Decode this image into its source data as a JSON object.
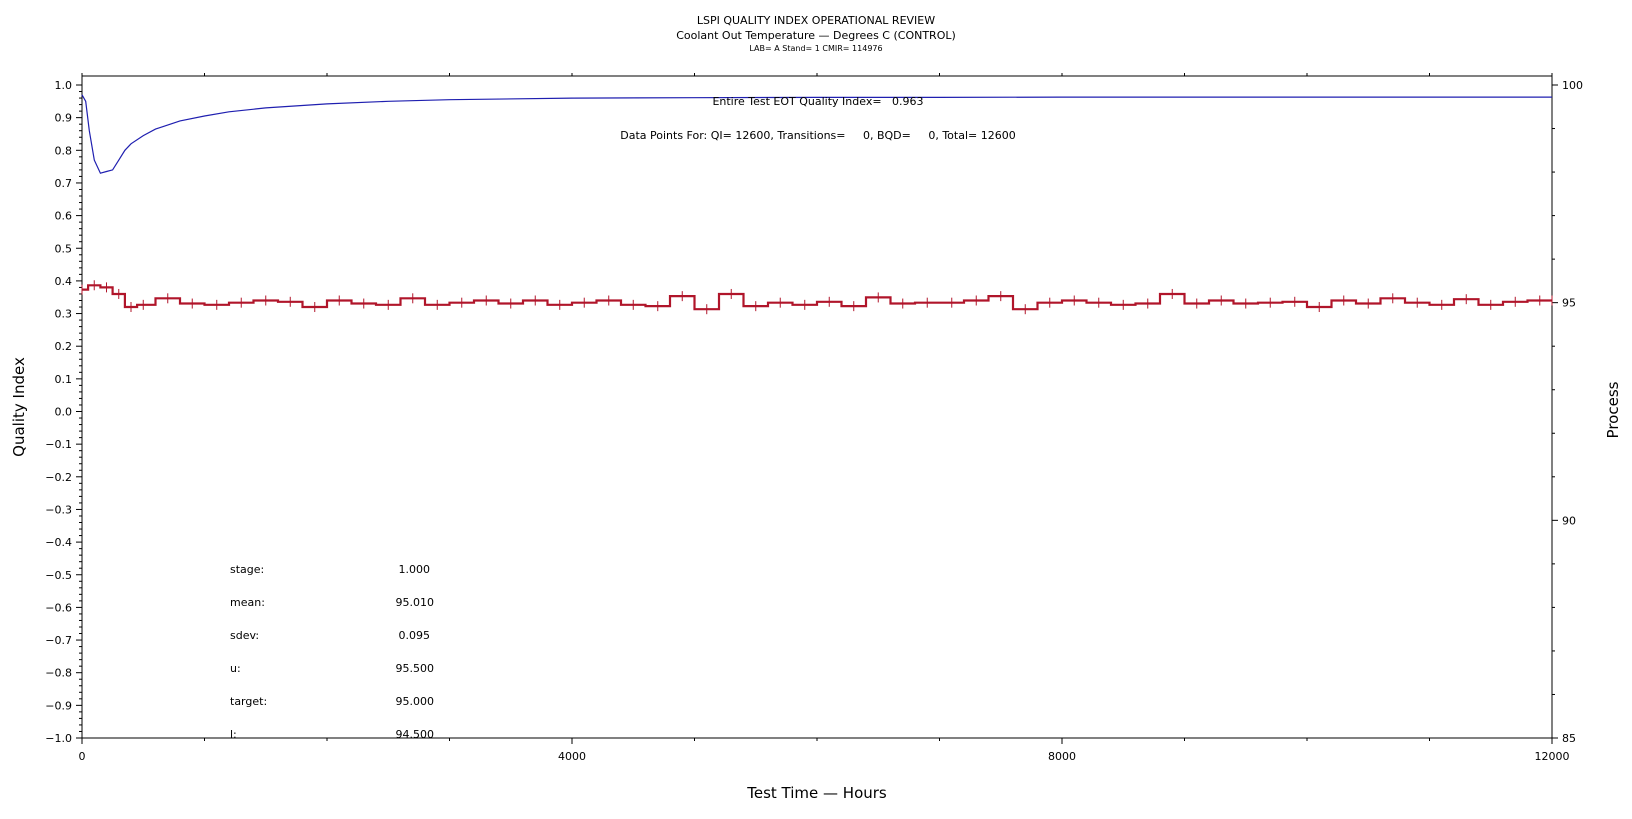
{
  "header": {
    "title": "LSPI QUALITY INDEX OPERATIONAL REVIEW",
    "subtitle": "Coolant Out Temperature — Degrees C (CONTROL)",
    "info": "LAB= A Stand= 1 CMIR= 114976"
  },
  "annotations": {
    "quality_index": "Entire Test EOT Quality Index=   0.963",
    "data_points": "Data Points For: QI= 12600, Transitions=     0, BQD=     0, Total= 12600"
  },
  "stats": [
    {
      "label": "stage:",
      "value": "1.000"
    },
    {
      "label": "mean:",
      "value": "95.010"
    },
    {
      "label": "sdev:",
      "value": "0.095"
    },
    {
      "label": "u:",
      "value": "95.500"
    },
    {
      "label": "target:",
      "value": "95.000"
    },
    {
      "label": "l:",
      "value": "94.500"
    }
  ],
  "chart_data": {
    "type": "line",
    "title": "LSPI QUALITY INDEX OPERATIONAL REVIEW",
    "subtitle": "Coolant Out Temperature — Degrees C (CONTROL)",
    "xlabel": "Test Time — Hours",
    "ylabel": "Quality Index",
    "y2label": "Process",
    "xlim": [
      0,
      12000
    ],
    "ylim": [
      -1.0,
      1.0
    ],
    "y2lim": [
      85,
      100
    ],
    "xticks": [
      "0",
      "4000",
      "8000",
      "12000"
    ],
    "yticks": [
      "1.0",
      "0.9",
      "0.8",
      "0.7",
      "0.6",
      "0.5",
      "0.4",
      "0.3",
      "0.2",
      "0.1",
      "0.0",
      "-0.1",
      "-0.2",
      "-0.3",
      "-0.4",
      "-0.5",
      "-0.6",
      "-0.7",
      "-0.8",
      "-0.9",
      "-1.0"
    ],
    "y2ticks": [
      "100",
      "95",
      "90",
      "85"
    ],
    "grid": false,
    "colors": {
      "quality_index": "#1f1fb0",
      "process": "#b0152a"
    },
    "series": [
      {
        "axis": "left",
        "x": [
          0,
          30,
          60,
          100,
          150,
          200,
          250,
          300,
          350,
          400,
          500,
          600,
          800,
          1000,
          1200,
          1500,
          2000,
          2500,
          3000,
          4000,
          5000,
          6000,
          7000,
          8000,
          9000,
          10000,
          11000,
          12000
        ],
        "values": [
          0.97,
          0.95,
          0.86,
          0.77,
          0.73,
          0.735,
          0.74,
          0.77,
          0.8,
          0.82,
          0.845,
          0.865,
          0.89,
          0.905,
          0.918,
          0.93,
          0.942,
          0.95,
          0.955,
          0.96,
          0.961,
          0.962,
          0.962,
          0.963,
          0.963,
          0.963,
          0.963,
          0.963
        ]
      },
      {
        "axis": "right",
        "x": [
          0,
          100,
          200,
          300,
          400,
          500,
          700,
          900,
          1100,
          1300,
          1500,
          1700,
          1900,
          2100,
          2300,
          2500,
          2700,
          2900,
          3100,
          3300,
          3500,
          3700,
          3900,
          4100,
          4300,
          4500,
          4700,
          4900,
          5100,
          5300,
          5500,
          5700,
          5900,
          6100,
          6300,
          6500,
          6700,
          6900,
          7100,
          7300,
          7500,
          7700,
          7900,
          8100,
          8300,
          8500,
          8700,
          8900,
          9100,
          9300,
          9500,
          9700,
          9900,
          10100,
          10300,
          10500,
          10700,
          10900,
          11100,
          11300,
          11500,
          11700,
          11900,
          12000
        ],
        "values": [
          95.3,
          95.4,
          95.35,
          95.2,
          94.9,
          94.95,
          95.1,
          94.98,
          94.95,
          95.0,
          95.05,
          95.02,
          94.9,
          95.05,
          94.98,
          94.95,
          95.1,
          94.95,
          95.0,
          95.05,
          94.98,
          95.05,
          94.95,
          95.0,
          95.05,
          94.95,
          94.92,
          95.15,
          94.85,
          95.2,
          94.92,
          95.0,
          94.95,
          95.02,
          94.92,
          95.12,
          94.98,
          95.0,
          95.0,
          95.05,
          95.15,
          94.85,
          95.0,
          95.05,
          95.0,
          94.95,
          94.98,
          95.2,
          94.98,
          95.05,
          94.98,
          95.0,
          95.02,
          94.9,
          95.05,
          94.98,
          95.1,
          95.0,
          94.95,
          95.08,
          94.95,
          95.02,
          95.05,
          95.05
        ]
      }
    ]
  }
}
